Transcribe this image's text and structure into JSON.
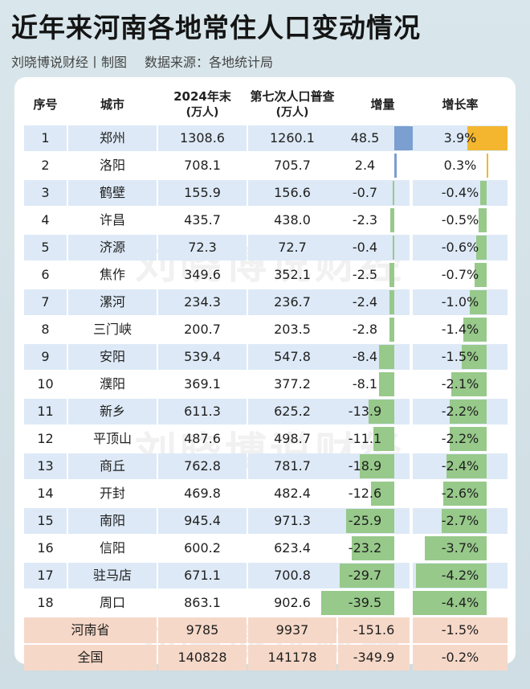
{
  "header": {
    "title": "近年来河南各地常住人口变动情况",
    "subtitle_source_author": "刘晓博说财经丨制图",
    "subtitle_data_source": "数据来源：各地统计局"
  },
  "watermark": "刘晓博说财经",
  "columns": {
    "index": "序号",
    "city": "城市",
    "pop2024": "2024年末",
    "pop2024_unit": "(万人)",
    "census7": "第七次人口普查",
    "census7_unit": "(万人)",
    "change": "增量",
    "rate": "增长率"
  },
  "colors": {
    "increase_bar": "#7a9fd0",
    "decrease_bar": "#97c98a",
    "rate_increase_bar": "#f3b62e",
    "row_band": "#dde9f6",
    "total_band": "#f6d8c8"
  },
  "chart_data": {
    "type": "table",
    "title": "近年来河南各地常住人口变动情况",
    "unit": "万人",
    "rows": [
      {
        "index": "1",
        "city": "郑州",
        "pop2024": "1308.6",
        "census7": "1260.1",
        "change": 48.5,
        "change_label": "48.5",
        "rate": 3.9,
        "rate_label": "3.9%"
      },
      {
        "index": "2",
        "city": "洛阳",
        "pop2024": "708.1",
        "census7": "705.7",
        "change": 2.4,
        "change_label": "2.4",
        "rate": 0.3,
        "rate_label": "0.3%"
      },
      {
        "index": "3",
        "city": "鹤壁",
        "pop2024": "155.9",
        "census7": "156.6",
        "change": -0.7,
        "change_label": "-0.7",
        "rate": -0.4,
        "rate_label": "-0.4%"
      },
      {
        "index": "4",
        "city": "许昌",
        "pop2024": "435.7",
        "census7": "438.0",
        "change": -2.3,
        "change_label": "-2.3",
        "rate": -0.5,
        "rate_label": "-0.5%"
      },
      {
        "index": "5",
        "city": "济源",
        "pop2024": "72.3",
        "census7": "72.7",
        "change": -0.4,
        "change_label": "-0.4",
        "rate": -0.6,
        "rate_label": "-0.6%"
      },
      {
        "index": "6",
        "city": "焦作",
        "pop2024": "349.6",
        "census7": "352.1",
        "change": -2.5,
        "change_label": "-2.5",
        "rate": -0.7,
        "rate_label": "-0.7%"
      },
      {
        "index": "7",
        "city": "漯河",
        "pop2024": "234.3",
        "census7": "236.7",
        "change": -2.4,
        "change_label": "-2.4",
        "rate": -1.0,
        "rate_label": "-1.0%"
      },
      {
        "index": "8",
        "city": "三门峡",
        "pop2024": "200.7",
        "census7": "203.5",
        "change": -2.8,
        "change_label": "-2.8",
        "rate": -1.4,
        "rate_label": "-1.4%"
      },
      {
        "index": "9",
        "city": "安阳",
        "pop2024": "539.4",
        "census7": "547.8",
        "change": -8.4,
        "change_label": "-8.4",
        "rate": -1.5,
        "rate_label": "-1.5%"
      },
      {
        "index": "10",
        "city": "濮阳",
        "pop2024": "369.1",
        "census7": "377.2",
        "change": -8.1,
        "change_label": "-8.1",
        "rate": -2.1,
        "rate_label": "-2.1%"
      },
      {
        "index": "11",
        "city": "新乡",
        "pop2024": "611.3",
        "census7": "625.2",
        "change": -13.9,
        "change_label": "-13.9",
        "rate": -2.2,
        "rate_label": "-2.2%"
      },
      {
        "index": "12",
        "city": "平顶山",
        "pop2024": "487.6",
        "census7": "498.7",
        "change": -11.1,
        "change_label": "-11.1",
        "rate": -2.2,
        "rate_label": "-2.2%"
      },
      {
        "index": "13",
        "city": "商丘",
        "pop2024": "762.8",
        "census7": "781.7",
        "change": -18.9,
        "change_label": "-18.9",
        "rate": -2.4,
        "rate_label": "-2.4%"
      },
      {
        "index": "14",
        "city": "开封",
        "pop2024": "469.8",
        "census7": "482.4",
        "change": -12.6,
        "change_label": "-12.6",
        "rate": -2.6,
        "rate_label": "-2.6%"
      },
      {
        "index": "15",
        "city": "南阳",
        "pop2024": "945.4",
        "census7": "971.3",
        "change": -25.9,
        "change_label": "-25.9",
        "rate": -2.7,
        "rate_label": "-2.7%"
      },
      {
        "index": "16",
        "city": "信阳",
        "pop2024": "600.2",
        "census7": "623.4",
        "change": -23.2,
        "change_label": "-23.2",
        "rate": -3.7,
        "rate_label": "-3.7%"
      },
      {
        "index": "17",
        "city": "驻马店",
        "pop2024": "671.1",
        "census7": "700.8",
        "change": -29.7,
        "change_label": "-29.7",
        "rate": -4.2,
        "rate_label": "-4.2%"
      },
      {
        "index": "18",
        "city": "周口",
        "pop2024": "863.1",
        "census7": "902.6",
        "change": -39.5,
        "change_label": "-39.5",
        "rate": -4.4,
        "rate_label": "-4.4%"
      }
    ],
    "totals": [
      {
        "label": "河南省",
        "pop2024": "9785",
        "census7": "9937",
        "change_label": "-151.6",
        "rate_label": "-1.5%"
      },
      {
        "label": "全国",
        "pop2024": "140828",
        "census7": "141178",
        "change_label": "-349.9",
        "rate_label": "-0.2%"
      }
    ]
  }
}
